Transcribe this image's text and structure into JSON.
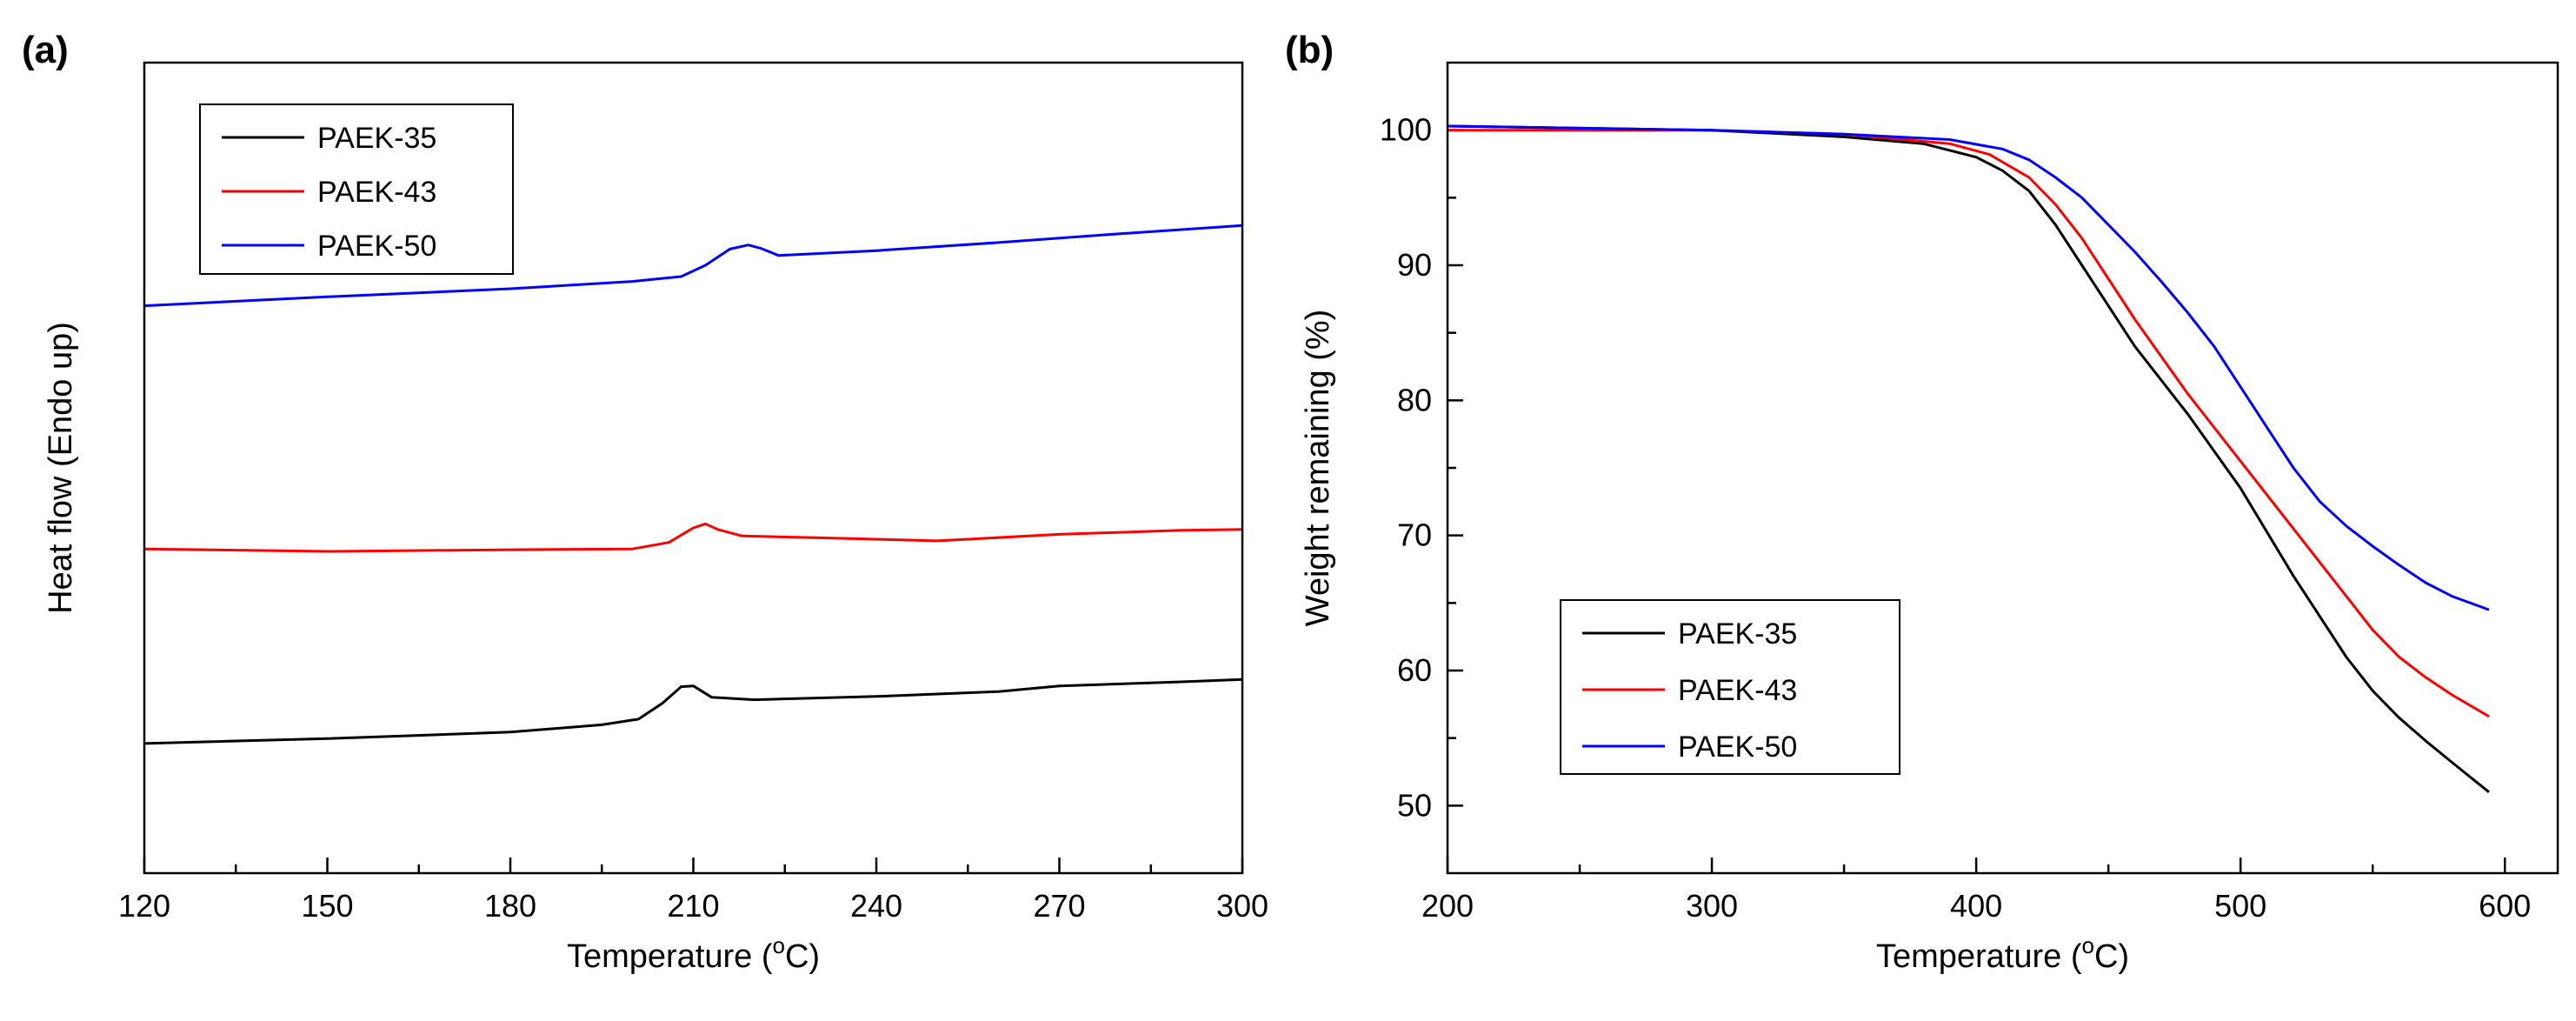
{
  "chart_data": [
    {
      "panel_label": "(a)",
      "type": "line",
      "title": "",
      "xlabel": "Temperature (°C)",
      "xlabel_main": "Temperature (",
      "xlabel_sup": "o",
      "xlabel_end": "C)",
      "ylabel": "Heat flow (Endo up)",
      "xlim": [
        120,
        300
      ],
      "ylim": [
        0,
        100
      ],
      "xticks": [
        120,
        150,
        180,
        210,
        240,
        270,
        300
      ],
      "xtick_labels": [
        "120",
        "150",
        "180",
        "210",
        "240",
        "270",
        "300"
      ],
      "yticks_shown": false,
      "legend": {
        "placement": "top-left",
        "entries": [
          "PAEK-35",
          "PAEK-43",
          "PAEK-50"
        ]
      },
      "series": [
        {
          "name": "PAEK-35",
          "color": "#000000",
          "x": [
            120,
            150,
            180,
            195,
            201,
            205,
            208,
            210,
            213,
            220,
            240,
            260,
            270,
            290,
            300
          ],
          "y": [
            16.0,
            16.6,
            17.4,
            18.3,
            19.0,
            21.0,
            23.0,
            23.1,
            21.7,
            21.4,
            21.8,
            22.4,
            23.1,
            23.6,
            23.9
          ]
        },
        {
          "name": "PAEK-43",
          "color": "#ff0000",
          "x": [
            120,
            150,
            180,
            200,
            206,
            210,
            212,
            214,
            218,
            230,
            250,
            270,
            290,
            300
          ],
          "y": [
            40.0,
            39.7,
            39.9,
            40.0,
            40.8,
            42.6,
            43.1,
            42.4,
            41.6,
            41.4,
            41.0,
            41.8,
            42.3,
            42.4
          ]
        },
        {
          "name": "PAEK-50",
          "color": "#0000ff",
          "x": [
            120,
            150,
            180,
            200,
            208,
            212,
            216,
            219,
            221,
            224,
            240,
            260,
            280,
            300
          ],
          "y": [
            70.0,
            71.1,
            72.1,
            73.0,
            73.6,
            75.0,
            77.0,
            77.5,
            77.1,
            76.2,
            76.8,
            77.8,
            78.9,
            79.9
          ]
        }
      ]
    },
    {
      "panel_label": "(b)",
      "type": "line",
      "title": "",
      "xlabel": "Temperature (°C)",
      "xlabel_main": "Temperature (",
      "xlabel_sup": "o",
      "xlabel_end": "C)",
      "ylabel": "Weight remaining (%)",
      "xlim": [
        200,
        620
      ],
      "ylim": [
        45,
        105
      ],
      "xticks": [
        200,
        300,
        400,
        500,
        600
      ],
      "xtick_labels": [
        "200",
        "300",
        "400",
        "500",
        "600"
      ],
      "yticks": [
        50,
        60,
        70,
        80,
        90,
        100
      ],
      "ytick_labels": [
        "50",
        "60",
        "70",
        "80",
        "90",
        "100"
      ],
      "legend": {
        "placement": "bottom-left",
        "entries": [
          "PAEK-35",
          "PAEK-43",
          "PAEK-50"
        ]
      },
      "series": [
        {
          "name": "PAEK-35",
          "color": "#000000",
          "x": [
            200,
            300,
            350,
            380,
            400,
            410,
            420,
            430,
            440,
            450,
            460,
            480,
            500,
            520,
            540,
            550,
            560,
            570,
            580,
            594
          ],
          "y": [
            100.3,
            100.0,
            99.5,
            99.0,
            98.0,
            97.0,
            95.5,
            93.0,
            90.0,
            87.0,
            84.0,
            79.0,
            73.5,
            67.0,
            61.0,
            58.5,
            56.5,
            54.8,
            53.2,
            51.0
          ]
        },
        {
          "name": "PAEK-43",
          "color": "#ff0000",
          "x": [
            200,
            300,
            350,
            390,
            405,
            420,
            430,
            440,
            450,
            460,
            480,
            500,
            520,
            530,
            540,
            550,
            560,
            570,
            580,
            594
          ],
          "y": [
            100.0,
            100.0,
            99.7,
            99.0,
            98.2,
            96.5,
            94.5,
            92.0,
            89.0,
            86.0,
            80.5,
            75.5,
            70.5,
            68.0,
            65.5,
            63.0,
            61.0,
            59.5,
            58.2,
            56.6
          ]
        },
        {
          "name": "PAEK-50",
          "color": "#0000ff",
          "x": [
            200,
            300,
            350,
            390,
            410,
            420,
            430,
            440,
            450,
            460,
            470,
            480,
            490,
            500,
            510,
            520,
            530,
            540,
            550,
            560,
            570,
            580,
            594
          ],
          "y": [
            100.3,
            100.0,
            99.7,
            99.3,
            98.6,
            97.8,
            96.5,
            95.0,
            93.0,
            91.0,
            88.8,
            86.5,
            84.0,
            81.0,
            78.0,
            75.0,
            72.5,
            70.7,
            69.2,
            67.8,
            66.5,
            65.5,
            64.5
          ]
        }
      ]
    }
  ]
}
